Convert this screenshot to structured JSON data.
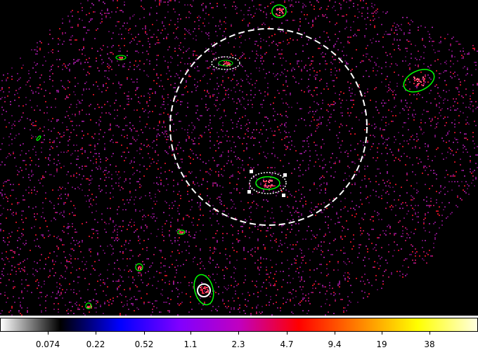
{
  "image_view": {
    "background_color": "#000000",
    "source_region_color": "#00ff00",
    "selected_region_color": "#ffffff"
  },
  "colorbar": {
    "colors": [
      "#ffffff",
      "#000000",
      "#0000ff",
      "#8000ff",
      "#c000c0",
      "#ff0000",
      "#ff8000",
      "#ffff00",
      "#ffffe0"
    ],
    "tick_labels": [
      "0.074",
      "0.22",
      "0.52",
      "1.1",
      "2.3",
      "4.7",
      "9.4",
      "19",
      "38"
    ]
  }
}
